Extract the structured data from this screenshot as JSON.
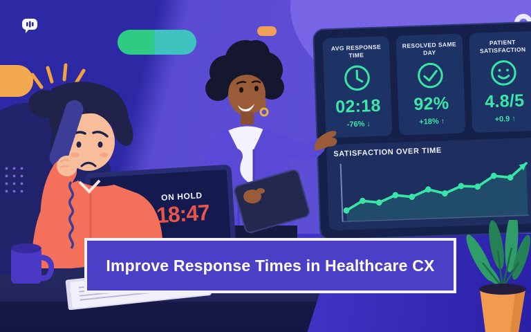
{
  "banner": {
    "title": "Improve Response Times in Healthcare CX"
  },
  "dashboard": {
    "kpis": [
      {
        "label": "AVG RESPONSE TIME",
        "icon": "clock-icon",
        "value": "02:18",
        "delta": "-76% ↓"
      },
      {
        "label": "RESOLVED SAME DAY",
        "icon": "check-circle-icon",
        "value": "92%",
        "delta": "+18% ↑"
      },
      {
        "label": "PATIENT SATISFACTION",
        "icon": "smiley-face-icon",
        "value": "4.8/5",
        "delta": "+0.9 ↑"
      }
    ],
    "chart_title": "SATISFACTION OVER TIME"
  },
  "laptop_screen": {
    "icon": "phone-call-icon",
    "status_label": "ON HOLD",
    "hold_timer": "18:47"
  },
  "decorations": {
    "top_left": "chat-bubble-icon",
    "top_right": "ring-icon"
  },
  "chart_data": {
    "type": "line",
    "title": "SATISFACTION OVER TIME",
    "x": [
      1,
      2,
      3,
      4,
      5,
      6,
      7,
      8,
      9,
      10,
      11
    ],
    "values": [
      3.0,
      3.4,
      3.3,
      3.6,
      3.5,
      3.8,
      3.6,
      3.9,
      3.85,
      4.3,
      4.2
    ],
    "trend_arrow_to": 4.8,
    "ylim": [
      2.7,
      5.0
    ],
    "xlabel": "",
    "ylabel": "",
    "grid": false,
    "legend": false,
    "line_color": "#38e5a5",
    "fill": "rgba(56,229,165,0.16)"
  },
  "colors": {
    "accent_green": "#38e5a5",
    "panel_navy": "#15204b",
    "card_navy": "#1e3365",
    "banner_purple": "#4c3fc7",
    "alert_red": "#e4564b",
    "background_dark_indigo": "#2d28a4",
    "background_purple": "#6253d9",
    "background_light_purple": "#7765e5"
  }
}
